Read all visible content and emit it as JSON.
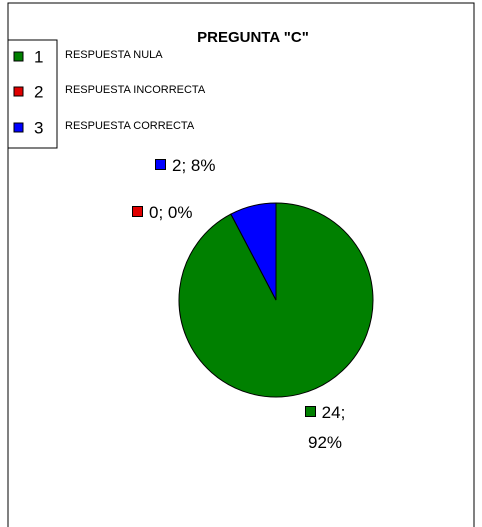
{
  "chart_data": {
    "type": "pie",
    "title": "PREGUNTA \"C\"",
    "categories": [
      "1",
      "2",
      "3"
    ],
    "descriptions": [
      "RESPUESTA NULA",
      "RESPUESTA INCORRECTA",
      "RESPUESTA CORRECTA"
    ],
    "values": [
      24,
      0,
      2
    ],
    "value_labels": [
      "24; 92%",
      "0; 0%",
      "2; 8%"
    ],
    "colors": [
      "#008000",
      "#e00000",
      "#0000ff"
    ],
    "legend": "top-left"
  }
}
